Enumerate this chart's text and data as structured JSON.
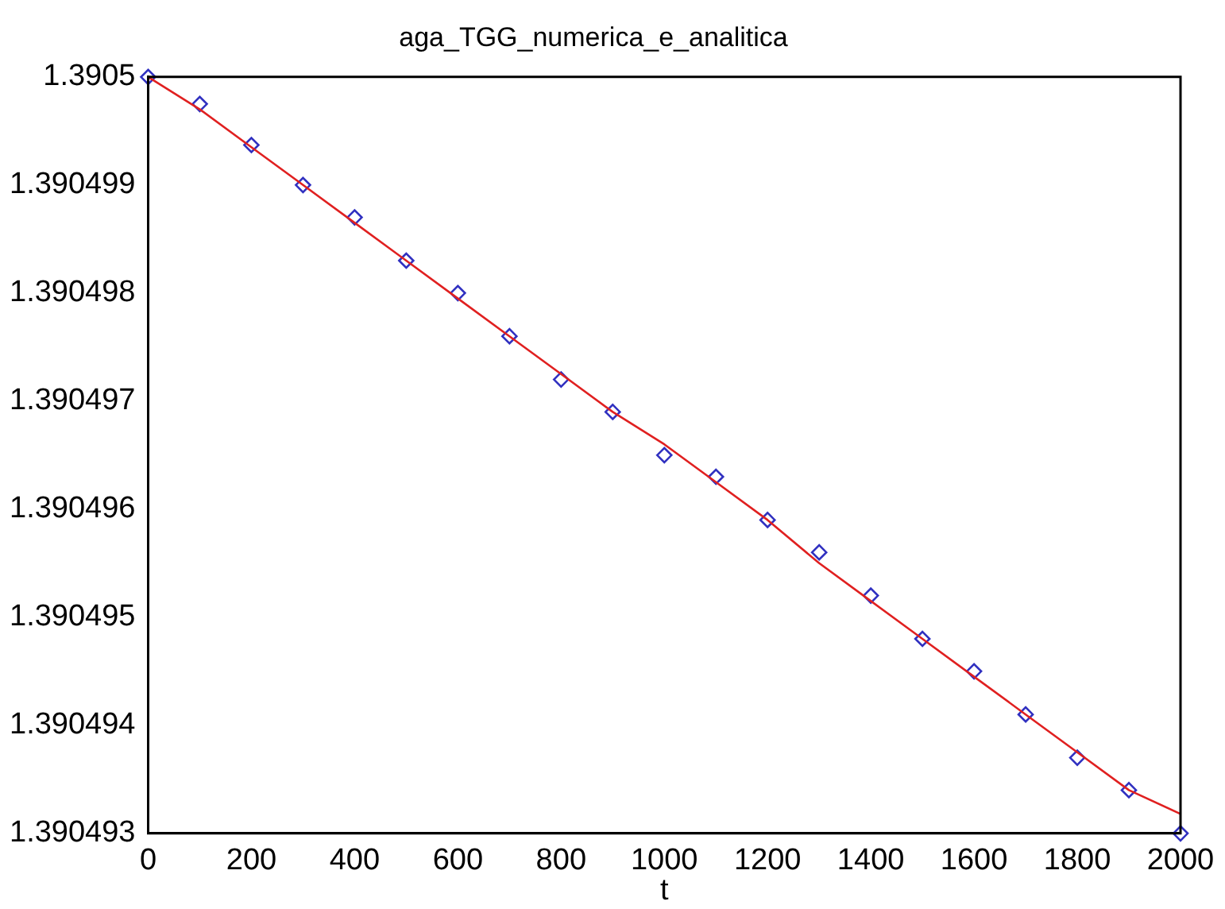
{
  "chart_data": {
    "type": "line",
    "title": "aga_TGG_numerica_e_analitica",
    "xlabel": "t",
    "grid": false,
    "legend": false,
    "xlim": [
      0,
      2000
    ],
    "xticks": [
      0,
      200,
      400,
      600,
      800,
      1000,
      1200,
      1400,
      1600,
      1800,
      2000
    ],
    "ylim": [
      1.390493,
      1.3905
    ],
    "yticks": [
      1.390493,
      1.390494,
      1.390495,
      1.390496,
      1.390497,
      1.390498,
      1.390499,
      1.3905
    ],
    "series": [
      {
        "color": "#e02020",
        "marker": "none",
        "x": [
          0,
          100,
          200,
          300,
          400,
          500,
          600,
          700,
          800,
          900,
          1000,
          1100,
          1200,
          1300,
          1400,
          1500,
          1600,
          1700,
          1800,
          1900,
          2000
        ],
        "values": [
          1.3905,
          1.3904997,
          1.39049935,
          1.390499,
          1.39049865,
          1.3904983,
          1.39049795,
          1.3904976,
          1.39049725,
          1.3904969,
          1.3904966,
          1.39049625,
          1.3904959,
          1.3904955,
          1.39049515,
          1.3904948,
          1.39049445,
          1.3904941,
          1.39049375,
          1.3904934,
          1.39049318
        ]
      },
      {
        "type": "scatter",
        "color": "#3030c0",
        "marker": "diamond",
        "x": [
          0,
          100,
          200,
          300,
          400,
          500,
          600,
          700,
          800,
          900,
          1000,
          1100,
          1200,
          1300,
          1400,
          1500,
          1600,
          1700,
          1800,
          1900,
          2000
        ],
        "values": [
          1.3905,
          1.39049975,
          1.39049937,
          1.390499,
          1.3904987,
          1.3904983,
          1.390498,
          1.3904976,
          1.3904972,
          1.3904969,
          1.3904965,
          1.3904963,
          1.3904959,
          1.3904956,
          1.3904952,
          1.3904948,
          1.3904945,
          1.3904941,
          1.3904937,
          1.3904934,
          1.390493
        ]
      }
    ]
  }
}
